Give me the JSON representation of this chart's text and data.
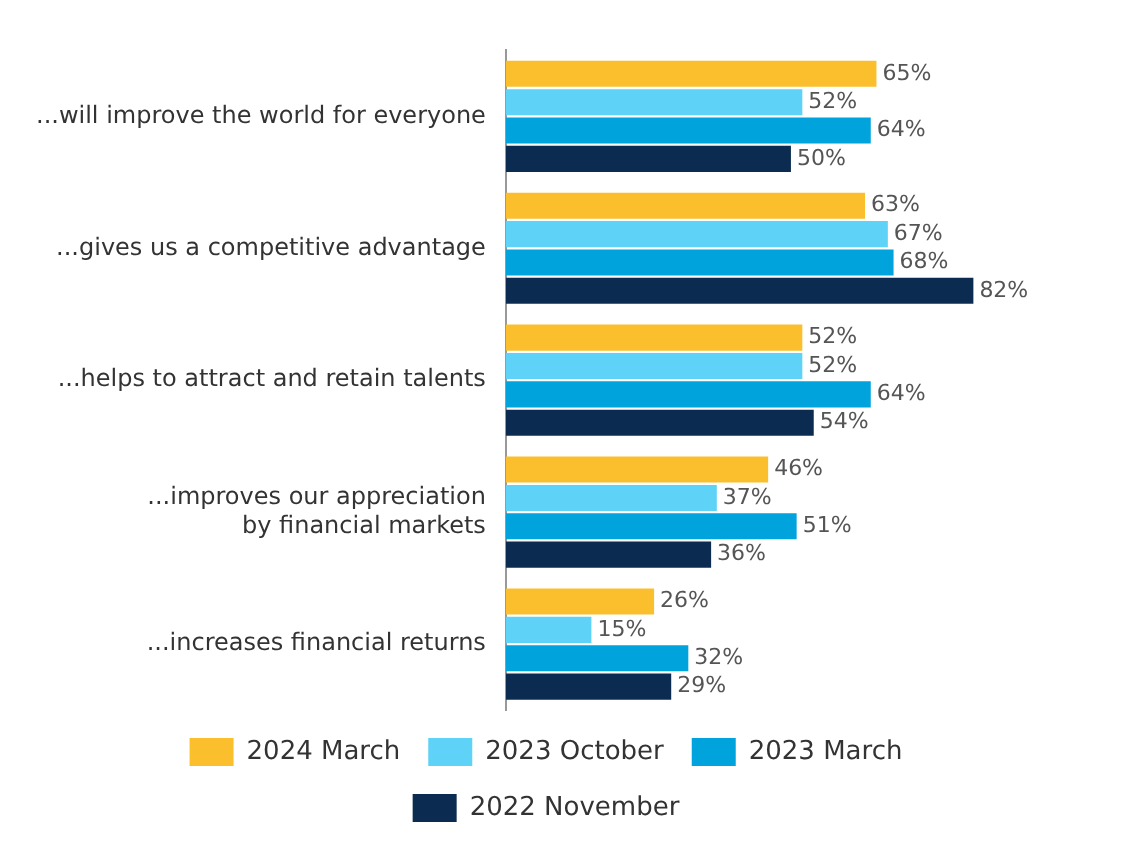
{
  "chart_data": {
    "type": "bar",
    "orientation": "horizontal",
    "categories": [
      "...will improve the world for everyone",
      "...gives us a competitive advantage",
      "...helps to attract and retain talents",
      "...improves our appreciation\nby financial markets",
      "...increases financial returns"
    ],
    "series": [
      {
        "name": "2024 March",
        "color": "#fbbf2e",
        "values": [
          65,
          63,
          52,
          46,
          26
        ],
        "value_labels": [
          "65%",
          "63%",
          "52%",
          "46%",
          "26%"
        ]
      },
      {
        "name": "2023 October",
        "color": "#5fd3f7",
        "values": [
          52,
          67,
          52,
          37,
          15
        ],
        "value_labels": [
          "52%",
          "67%",
          "52%",
          "37%",
          "15%"
        ]
      },
      {
        "name": "2023 March",
        "color": "#00a3dc",
        "values": [
          64,
          68,
          64,
          51,
          32
        ],
        "value_labels": [
          "64%",
          "68%",
          "64%",
          "51%",
          "32%"
        ]
      },
      {
        "name": "2022 November",
        "color": "#0b2c50",
        "values": [
          50,
          82,
          54,
          36,
          29
        ],
        "value_labels": [
          "50%",
          "82%",
          "54%",
          "36%",
          "29%"
        ]
      }
    ],
    "legend": "bottom",
    "grid": false
  }
}
